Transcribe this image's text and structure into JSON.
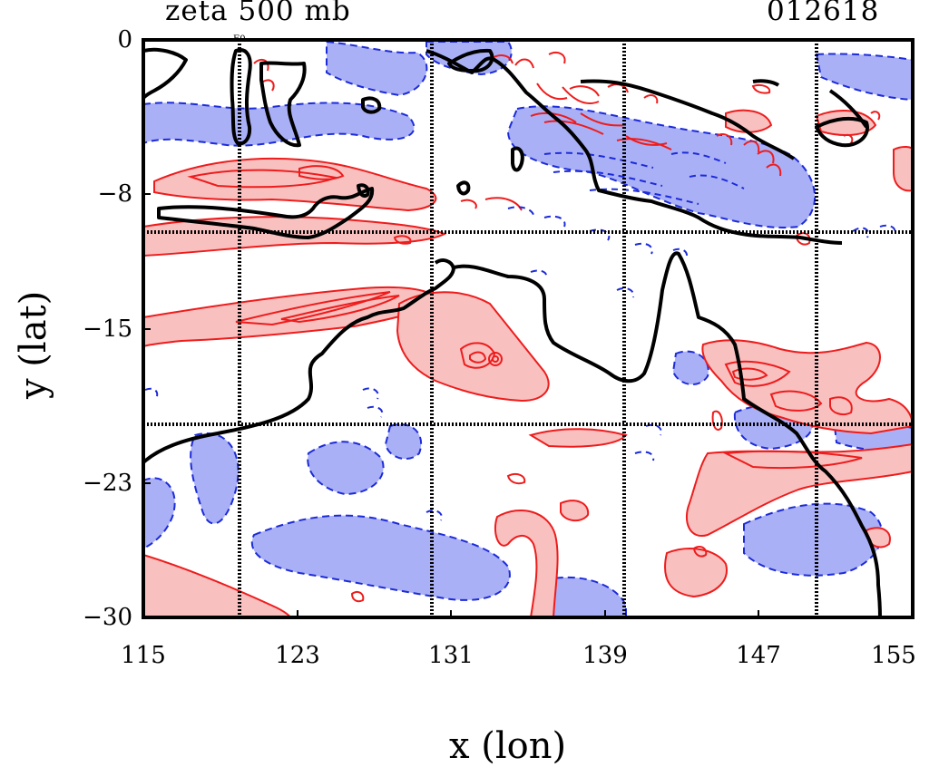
{
  "header": {
    "title": "zeta 500 mb",
    "timestamp": "012618"
  },
  "map_labels": {
    "small_marker": "E0"
  },
  "colors": {
    "positive_fill": "#f9c0c0",
    "positive_contour": "#ee1c1c",
    "negative_fill": "#aab0f6",
    "negative_contour": "#1c2bd9",
    "coastline": "#000000",
    "grid": "#000000"
  },
  "chart_data": {
    "type": "contour",
    "title": "zeta 500 mb",
    "xlabel": "x (lon)",
    "ylabel": "y (lat)",
    "xlim": [
      115,
      155
    ],
    "ylim": [
      -30,
      0
    ],
    "x_ticks": [
      "115",
      "123",
      "131",
      "139",
      "147",
      "155"
    ],
    "y_ticks": [
      "0",
      "−8",
      "−15",
      "−23",
      "−30"
    ],
    "grid_lon": [
      120,
      130,
      140,
      150
    ],
    "grid_lat": [
      -10,
      -20
    ],
    "grid": true
  }
}
